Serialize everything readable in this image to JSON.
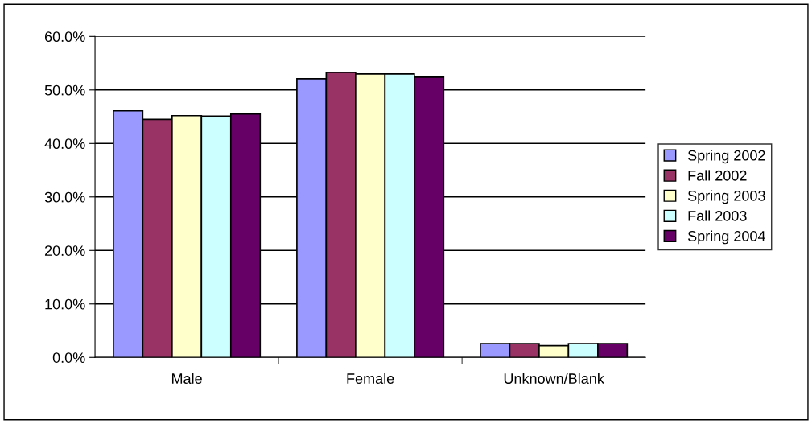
{
  "chart_data": {
    "type": "bar",
    "categories": [
      "Male",
      "Female",
      "Unknown/Blank"
    ],
    "series": [
      {
        "name": "Spring 2002",
        "color": "#9999ff",
        "values": [
          46.1,
          52.1,
          2.6
        ]
      },
      {
        "name": "Fall 2002",
        "color": "#993366",
        "values": [
          44.5,
          53.3,
          2.6
        ]
      },
      {
        "name": "Spring 2003",
        "color": "#ffffcc",
        "values": [
          45.2,
          53.0,
          2.2
        ]
      },
      {
        "name": "Fall 2003",
        "color": "#ccffff",
        "values": [
          45.1,
          53.0,
          2.6
        ]
      },
      {
        "name": "Spring 2004",
        "color": "#660066",
        "values": [
          45.5,
          52.4,
          2.6
        ]
      }
    ],
    "ylim": [
      0,
      60
    ],
    "yticks": [
      {
        "value": 0,
        "label": "0.0%"
      },
      {
        "value": 10,
        "label": "10.0%"
      },
      {
        "value": 20,
        "label": "20.0%"
      },
      {
        "value": 30,
        "label": "30.0%"
      },
      {
        "value": 40,
        "label": "40.0%"
      },
      {
        "value": 50,
        "label": "50.0%"
      },
      {
        "value": 60,
        "label": "60.0%"
      }
    ],
    "grid": "y",
    "legend": "right"
  }
}
